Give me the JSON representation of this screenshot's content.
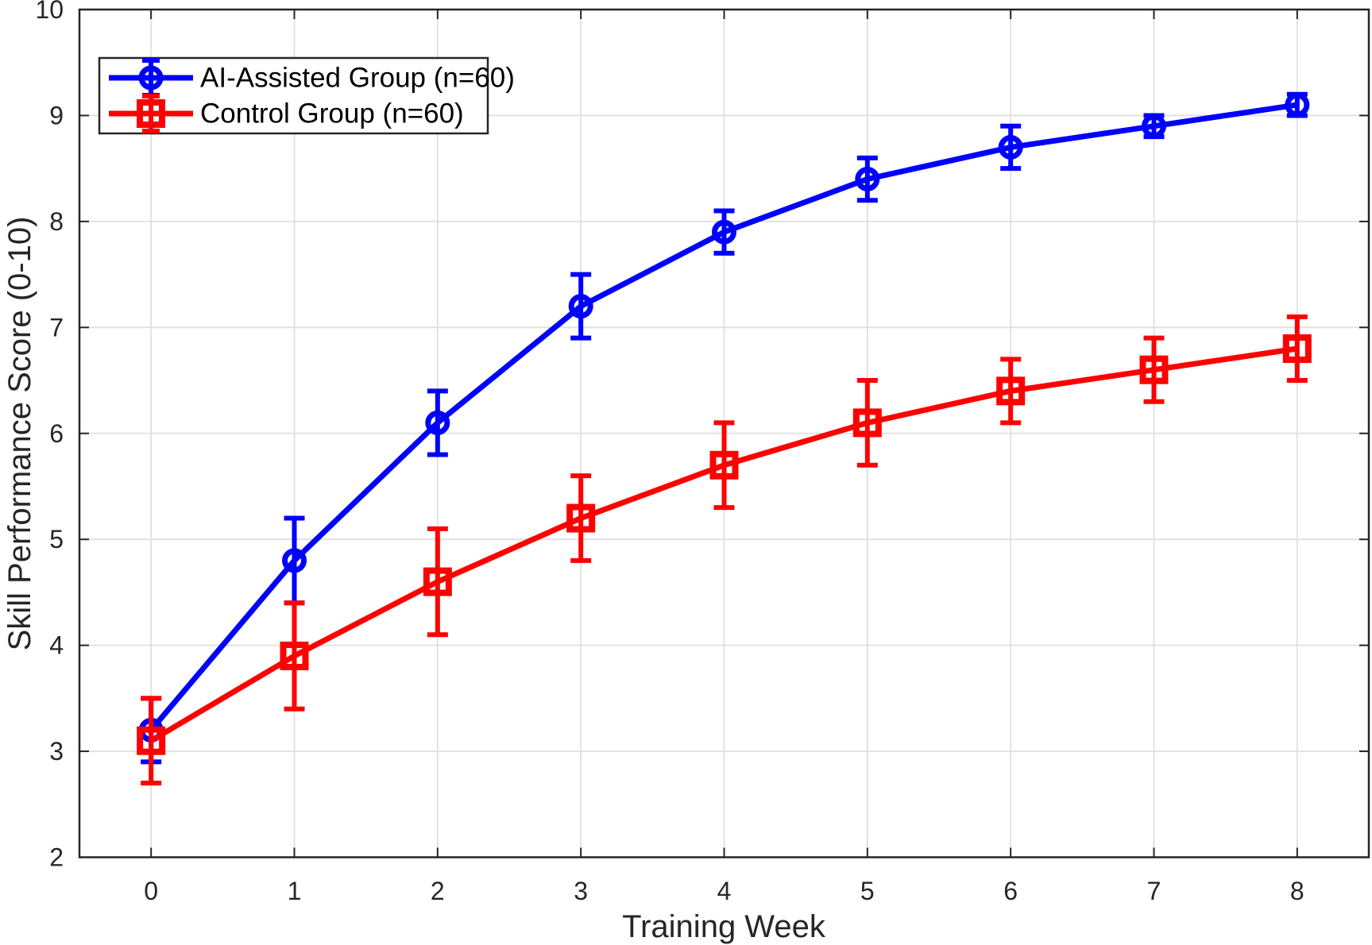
{
  "figure": {
    "background_color": "#FFFFFF",
    "axis_color": "#262626",
    "grid_color": "#E0E0E0",
    "legend_border_color": "#262626",
    "legend_background": "#FFFFFF"
  },
  "chart_data": {
    "type": "line",
    "title": "",
    "xlabel": "Training Week",
    "ylabel": "Skill Performance Score (0-10)",
    "x": [
      0,
      1,
      2,
      3,
      4,
      5,
      6,
      7,
      8
    ],
    "x_tick_labels": [
      "0",
      "1",
      "2",
      "3",
      "4",
      "5",
      "6",
      "7",
      "8"
    ],
    "y_ticks": [
      2,
      3,
      4,
      5,
      6,
      7,
      8,
      9,
      10
    ],
    "y_tick_labels": [
      "2",
      "3",
      "4",
      "5",
      "6",
      "7",
      "8",
      "9",
      "10"
    ],
    "xlim": [
      -0.5,
      8.5
    ],
    "ylim": [
      2,
      10
    ],
    "grid": true,
    "legend_position": "northwest",
    "series": [
      {
        "name": "AI-Assisted Group (n=60)",
        "color": "#0000FF",
        "marker": "circle",
        "values": [
          3.2,
          4.8,
          6.1,
          7.2,
          7.9,
          8.4,
          8.7,
          8.9,
          9.1
        ],
        "errors": [
          0.3,
          0.4,
          0.3,
          0.3,
          0.2,
          0.2,
          0.2,
          0.1,
          0.1
        ]
      },
      {
        "name": "Control Group (n=60)",
        "color": "#FF0000",
        "marker": "square",
        "values": [
          3.1,
          3.9,
          4.6,
          5.2,
          5.7,
          6.1,
          6.4,
          6.6,
          6.8
        ],
        "errors": [
          0.4,
          0.5,
          0.5,
          0.4,
          0.4,
          0.4,
          0.3,
          0.3,
          0.3
        ]
      }
    ]
  }
}
